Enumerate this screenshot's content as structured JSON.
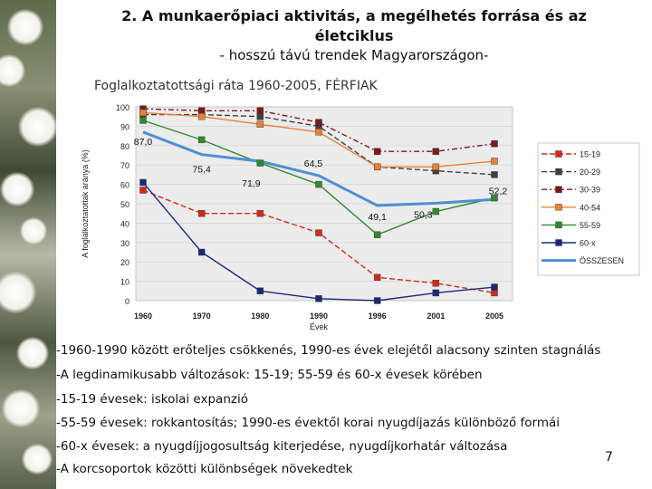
{
  "slide": {
    "title_line1": "2. A munkaerőpiaci aktivitás, a megélhetés forrása és az",
    "title_line2": "életciklus",
    "subtitle": "- hosszú távú trendek Magyarországon-",
    "chart_caption": "Foglalkoztatottsági ráta 1960-2005, FÉRFIAK",
    "page_number": "7"
  },
  "bullets": [
    "-1960-1990 között erőteljes csökkenés, 1990-es évek elejétől alacsony szinten stagnálás",
    "-A legdinamikusabb változások: 15-19; 55-59 és 60-x évesek körében",
    "-15-19 évesek: iskolai expanzió",
    "-55-59 évesek: rokkantosítás; 1990-es évektől korai nyugdíjazás különböző formái",
    "-60-x évesek: a nyugdíjjogosultság  kiterjedése, nyugdíjkorhatár változása",
    "-A korcsoportok közötti különbségek növekedtek"
  ],
  "chart_data": {
    "type": "line",
    "title": "Foglalkoztatottsági ráta 1960-2005, FÉRFIAK",
    "xlabel": "Évek",
    "ylabel": "A foglalkoztatottak aránya (%)",
    "categories": [
      "1960",
      "1970",
      "1980",
      "1990",
      "1996",
      "2001",
      "2005"
    ],
    "ylim": [
      0,
      100
    ],
    "yticks": [
      "0",
      "10",
      "20",
      "30",
      "40",
      "50",
      "60",
      "70",
      "80",
      "90",
      "100"
    ],
    "series": [
      {
        "name": "15-19",
        "color": "#d42a1e",
        "dash": "6,3",
        "marker": "square",
        "values": [
          57,
          45,
          45,
          35,
          12,
          9,
          4
        ]
      },
      {
        "name": "20-29",
        "color": "#404040",
        "dash": "6,3",
        "marker": "square",
        "values": [
          96,
          96,
          95,
          90,
          69,
          67,
          65
        ]
      },
      {
        "name": "30-39",
        "color": "#7a1a1a",
        "dash": "6,3,2,3",
        "marker": "square",
        "values": [
          99,
          98,
          98,
          92,
          77,
          77,
          81
        ]
      },
      {
        "name": "40-54",
        "color": "#e8803a",
        "dash": "",
        "marker": "square",
        "values": [
          97,
          95,
          91,
          87,
          69,
          69,
          72
        ]
      },
      {
        "name": "55-59",
        "color": "#2e8b2e",
        "dash": "",
        "marker": "square",
        "values": [
          93,
          83,
          71,
          60,
          34,
          46,
          53
        ]
      },
      {
        "name": "60-x",
        "color": "#1a2a7a",
        "dash": "",
        "marker": "square",
        "values": [
          61,
          25,
          5,
          1,
          0,
          4,
          7
        ]
      },
      {
        "name": "ÖSSZESEN",
        "color": "#4f8fd4",
        "dash": "",
        "marker": "none",
        "values": [
          87.0,
          75.4,
          71.9,
          64.5,
          49.1,
          50.3,
          52.2
        ]
      }
    ],
    "data_labels": [
      "87,0",
      "75,4",
      "71,9",
      "64,5",
      "49,1",
      "50,3",
      "52,2"
    ]
  }
}
